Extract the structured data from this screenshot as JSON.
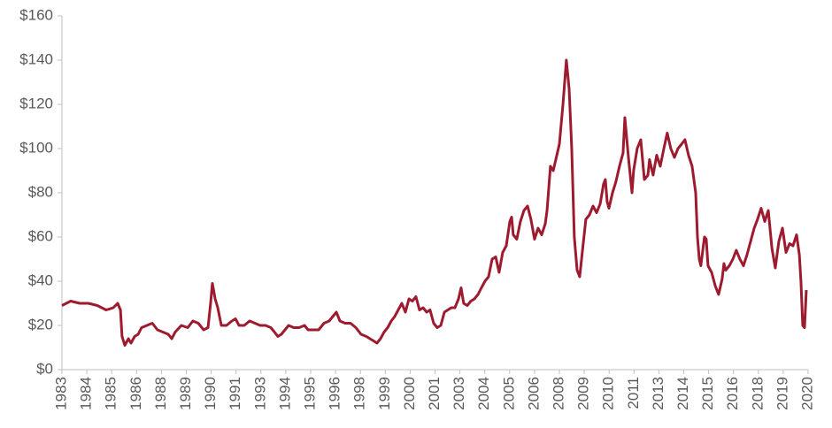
{
  "chart_data": {
    "type": "line",
    "color": "#9e1b2f",
    "xlim": [
      1983,
      2020.5
    ],
    "ylim": [
      0,
      160
    ],
    "yticks": [
      {
        "value": 0,
        "label": "$0"
      },
      {
        "value": 20,
        "label": "$20"
      },
      {
        "value": 40,
        "label": "$40"
      },
      {
        "value": 60,
        "label": "$60"
      },
      {
        "value": 80,
        "label": "$80"
      },
      {
        "value": 100,
        "label": "$100"
      },
      {
        "value": 120,
        "label": "$120"
      },
      {
        "value": 140,
        "label": "$140"
      },
      {
        "value": 160,
        "label": "$160"
      }
    ],
    "xticks": [
      1983,
      {
        "value": 1984.25,
        "label": "1984"
      },
      {
        "value": 1985.5,
        "label": "1985"
      },
      {
        "value": 1986.75,
        "label": "1986"
      },
      1988,
      {
        "value": 1989.25,
        "label": "1989"
      },
      {
        "value": 1990.5,
        "label": "1990"
      },
      {
        "value": 1991.75,
        "label": "1991"
      },
      1993,
      {
        "value": 1994.25,
        "label": "1994"
      },
      {
        "value": 1995.5,
        "label": "1995"
      },
      {
        "value": 1996.75,
        "label": "1996"
      },
      1998,
      {
        "value": 1999.25,
        "label": "1999"
      },
      {
        "value": 2000.5,
        "label": "2000"
      },
      {
        "value": 2001.75,
        "label": "2001"
      },
      2003,
      {
        "value": 2004.25,
        "label": "2004"
      },
      {
        "value": 2005.5,
        "label": "2005"
      },
      {
        "value": 2006.75,
        "label": "2006"
      },
      2008,
      {
        "value": 2009.25,
        "label": "2009"
      },
      {
        "value": 2010.5,
        "label": "2010"
      },
      {
        "value": 2011.75,
        "label": "2011"
      },
      2013,
      {
        "value": 2014.25,
        "label": "2014"
      },
      {
        "value": 2015.5,
        "label": "2015"
      },
      {
        "value": 2016.75,
        "label": "2016"
      },
      2018,
      {
        "value": 2019.25,
        "label": "2019"
      },
      {
        "value": 2020.5,
        "label": "2020"
      }
    ],
    "x": [
      1983.0,
      1983.44,
      1983.89,
      1984.33,
      1984.78,
      1985.22,
      1985.58,
      1985.8,
      1985.94,
      1986.02,
      1986.16,
      1986.34,
      1986.47,
      1986.65,
      1986.83,
      1987.0,
      1987.27,
      1987.54,
      1987.8,
      1988.07,
      1988.34,
      1988.52,
      1988.69,
      1989.0,
      1989.32,
      1989.58,
      1989.85,
      1990.12,
      1990.34,
      1990.47,
      1990.56,
      1990.7,
      1990.83,
      1991.01,
      1991.27,
      1991.54,
      1991.72,
      1991.9,
      1992.16,
      1992.43,
      1992.7,
      1992.96,
      1993.23,
      1993.5,
      1993.68,
      1993.85,
      1994.03,
      1994.21,
      1994.39,
      1994.65,
      1994.92,
      1995.19,
      1995.37,
      1995.63,
      1995.9,
      1996.17,
      1996.43,
      1996.61,
      1996.79,
      1996.97,
      1997.23,
      1997.5,
      1997.77,
      1998.03,
      1998.3,
      1998.48,
      1998.66,
      1998.83,
      1999.01,
      1999.19,
      1999.37,
      1999.55,
      1999.72,
      1999.9,
      2000.08,
      2000.26,
      2000.44,
      2000.61,
      2000.79,
      2000.97,
      2001.15,
      2001.33,
      2001.5,
      2001.68,
      2001.86,
      2002.04,
      2002.22,
      2002.39,
      2002.57,
      2002.75,
      2002.93,
      2003.06,
      2003.19,
      2003.37,
      2003.55,
      2003.73,
      2003.91,
      2004.08,
      2004.26,
      2004.44,
      2004.62,
      2004.8,
      2004.97,
      2005.15,
      2005.33,
      2005.51,
      2005.6,
      2005.68,
      2005.86,
      2006.04,
      2006.22,
      2006.4,
      2006.57,
      2006.75,
      2006.93,
      2007.11,
      2007.29,
      2007.38,
      2007.55,
      2007.69,
      2007.82,
      2008.0,
      2008.18,
      2008.35,
      2008.49,
      2008.62,
      2008.75,
      2008.89,
      2009.02,
      2009.15,
      2009.33,
      2009.51,
      2009.69,
      2009.87,
      2010.05,
      2010.22,
      2010.31,
      2010.4,
      2010.49,
      2010.67,
      2010.84,
      2011.02,
      2011.2,
      2011.29,
      2011.47,
      2011.65,
      2011.73,
      2011.91,
      2012.09,
      2012.27,
      2012.45,
      2012.53,
      2012.71,
      2012.89,
      2013.07,
      2013.25,
      2013.42,
      2013.6,
      2013.78,
      2013.96,
      2014.14,
      2014.31,
      2014.49,
      2014.67,
      2014.85,
      2014.94,
      2015.03,
      2015.11,
      2015.29,
      2015.38,
      2015.47,
      2015.65,
      2015.83,
      2016.0,
      2016.18,
      2016.27,
      2016.36,
      2016.54,
      2016.72,
      2016.89,
      2017.07,
      2017.25,
      2017.43,
      2017.61,
      2017.79,
      2017.96,
      2018.14,
      2018.32,
      2018.5,
      2018.68,
      2018.85,
      2019.03,
      2019.21,
      2019.39,
      2019.57,
      2019.74,
      2019.92,
      2020.06,
      2020.14,
      2020.23,
      2020.32,
      2020.41
    ],
    "values": [
      29,
      31,
      30,
      30,
      29,
      27,
      28,
      30,
      27,
      15,
      11,
      14,
      12,
      15,
      16,
      19,
      20,
      21,
      18,
      17,
      16,
      14,
      17,
      20,
      19,
      22,
      21,
      18,
      19,
      30,
      39,
      32,
      28,
      20,
      20,
      22,
      23,
      20,
      20,
      22,
      21,
      20,
      20,
      19,
      17,
      15,
      16,
      18,
      20,
      19,
      19,
      20,
      18,
      18,
      18,
      21,
      22,
      24,
      26,
      22,
      21,
      21,
      19,
      16,
      15,
      14,
      13,
      12,
      14,
      17,
      19,
      22,
      24,
      27,
      30,
      26,
      32,
      31,
      33,
      27,
      28,
      26,
      27,
      21,
      19,
      20,
      26,
      27,
      28,
      28,
      32,
      37,
      30,
      29,
      31,
      32,
      34,
      37,
      40,
      42,
      50,
      51,
      44,
      53,
      56,
      67,
      69,
      61,
      59,
      67,
      72,
      74,
      68,
      59,
      64,
      61,
      66,
      72,
      92,
      90,
      95,
      102,
      120,
      140,
      127,
      100,
      60,
      45,
      42,
      53,
      68,
      70,
      74,
      71,
      75,
      84,
      86,
      76,
      73,
      80,
      85,
      92,
      98,
      114,
      96,
      80,
      90,
      100,
      104,
      86,
      88,
      95,
      88,
      97,
      92,
      100,
      107,
      100,
      96,
      100,
      102,
      104,
      97,
      92,
      80,
      60,
      50,
      47,
      60,
      59,
      47,
      44,
      38,
      34,
      41,
      48,
      45,
      47,
      50,
      54,
      50,
      47,
      52,
      58,
      64,
      68,
      73,
      67,
      72,
      55,
      46,
      58,
      64,
      53,
      57,
      56,
      61,
      52,
      40,
      20,
      19,
      36
    ]
  }
}
